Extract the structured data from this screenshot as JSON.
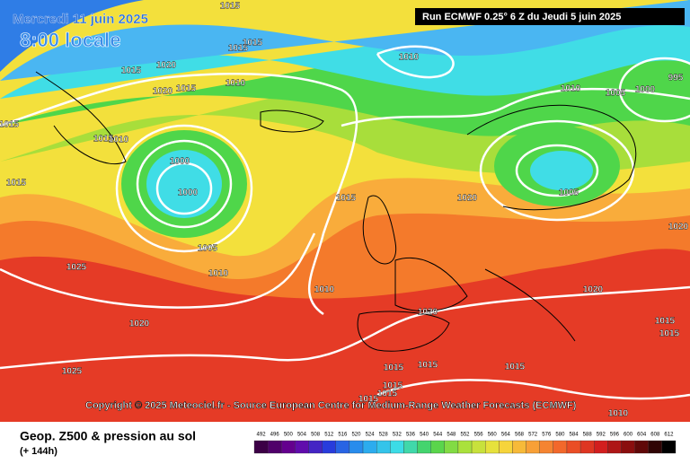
{
  "header": {
    "date": "Mercredi 11 juin 2025",
    "time": "8:00 locale",
    "run": "Run ECMWF 0.25° 6 Z du Jeudi 5 juin 2025"
  },
  "isobar_labels": [
    1015,
    1015,
    1015,
    1010,
    1015,
    1020,
    1020,
    1015,
    1010,
    1010,
    1005,
    1000,
    995,
    1015,
    1015,
    1010,
    1000,
    1000,
    1015,
    1015,
    1020,
    1005,
    1020,
    1005,
    1010,
    1025,
    1010,
    1020,
    1020,
    1020,
    1015,
    1015,
    1025,
    1015,
    1015,
    1015,
    1015,
    1015,
    1015,
    1010
  ],
  "copyright": "Copyright © 2025 Meteociel.fr - Source European Centre for Medium-Range Weather Forecasts (ECMWF)",
  "footer": {
    "title": "Geop. Z500 & pression au sol",
    "lead": "(+ 144h)"
  },
  "legend": {
    "values": [
      492,
      496,
      500,
      504,
      508,
      512,
      516,
      520,
      524,
      528,
      532,
      536,
      540,
      544,
      548,
      552,
      556,
      560,
      564,
      568,
      572,
      576,
      580,
      584,
      588,
      592,
      596,
      600,
      604,
      608,
      612
    ]
  }
}
